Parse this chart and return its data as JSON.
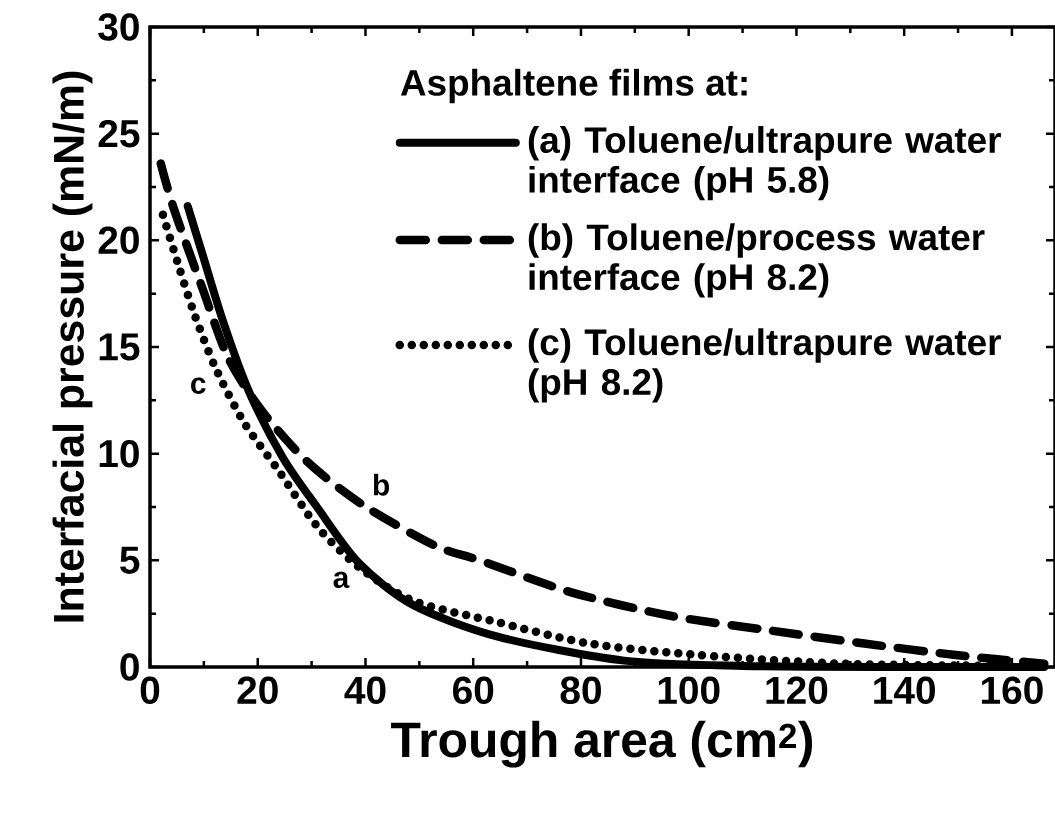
{
  "chart_data": {
    "type": "line",
    "xlabel": "Trough area (cm$^{2}$)",
    "ylabel": "Interfacial pressure (mN/m)",
    "legend_title": "Asphaltene films at:",
    "legend": "top right",
    "xlim": [
      0,
      168
    ],
    "ylim": [
      0,
      30
    ],
    "xticks": [
      0,
      20,
      40,
      60,
      80,
      100,
      120,
      140,
      160
    ],
    "yticks": [
      0,
      5,
      10,
      15,
      20,
      25,
      30
    ],
    "grid": false,
    "series": [
      {
        "name": "(a) Toluene/ultrapure water interface (pH 5.8)",
        "color": "#000000",
        "line_style": "solid",
        "x": [
          7.0,
          9.8,
          13.7,
          18.4,
          24.7,
          31,
          38.7,
          48.9,
          64.9,
          88,
          110,
          140,
          166
        ],
        "values": [
          21.6,
          19.3,
          16.1,
          12.9,
          9.8,
          7.5,
          4.9,
          2.9,
          1.4,
          0.3,
          0.05,
          0,
          0
        ]
      },
      {
        "name": "(b) Toluene/process water interface (pH 8.2)",
        "color": "#000000",
        "line_style": "dashed",
        "x": [
          2.0,
          4.4,
          9.8,
          14.5,
          20.8,
          29.3,
          39.5,
          52.8,
          61.2,
          78.2,
          96.6,
          115.5,
          132.6,
          149.6,
          166
        ],
        "values": [
          23.6,
          21.5,
          17.7,
          14.5,
          12.0,
          9.6,
          7.6,
          5.7,
          5.0,
          3.5,
          2.4,
          1.7,
          1.1,
          0.56,
          0.15
        ]
      },
      {
        "name": "(c) Toluene/ultrapure water (pH 8.2)",
        "color": "#000000",
        "line_style": "dotted",
        "x": [
          2.4,
          5.2,
          8.3,
          12.2,
          17.6,
          23.9,
          31,
          38.7,
          48.9,
          64.5,
          81.6,
          102,
          129,
          160
        ],
        "values": [
          21.2,
          18.9,
          16.5,
          14.0,
          11.4,
          9.2,
          6.6,
          4.7,
          3.1,
          2.1,
          1.1,
          0.56,
          0.15,
          0.05
        ]
      }
    ],
    "annotations": [
      {
        "text": "a",
        "x": 38.7,
        "y": 4.9
      },
      {
        "text": "b",
        "x": 39.5,
        "y": 7.6
      },
      {
        "text": "c",
        "x": 12.2,
        "y": 14.0
      }
    ]
  }
}
